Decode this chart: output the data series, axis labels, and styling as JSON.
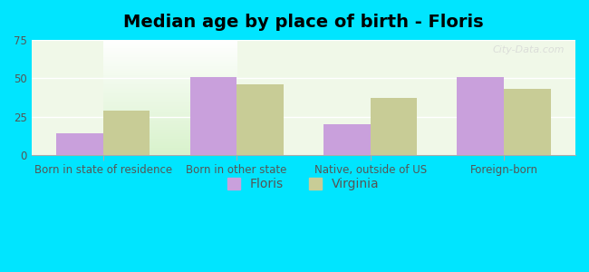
{
  "title": "Median age by place of birth - Floris",
  "categories": [
    "Born in state of residence",
    "Born in other state",
    "Native, outside of US",
    "Foreign-born"
  ],
  "floris_values": [
    14,
    51,
    20,
    51
  ],
  "virginia_values": [
    29,
    46,
    37,
    43
  ],
  "floris_color": "#c9a0dc",
  "virginia_color": "#c8cc96",
  "background_outer": "#00e5ff",
  "ylim": [
    0,
    75
  ],
  "yticks": [
    0,
    25,
    50,
    75
  ],
  "bar_width": 0.35,
  "legend_labels": [
    "Floris",
    "Virginia"
  ],
  "title_fontsize": 14,
  "tick_fontsize": 8.5,
  "legend_fontsize": 10
}
